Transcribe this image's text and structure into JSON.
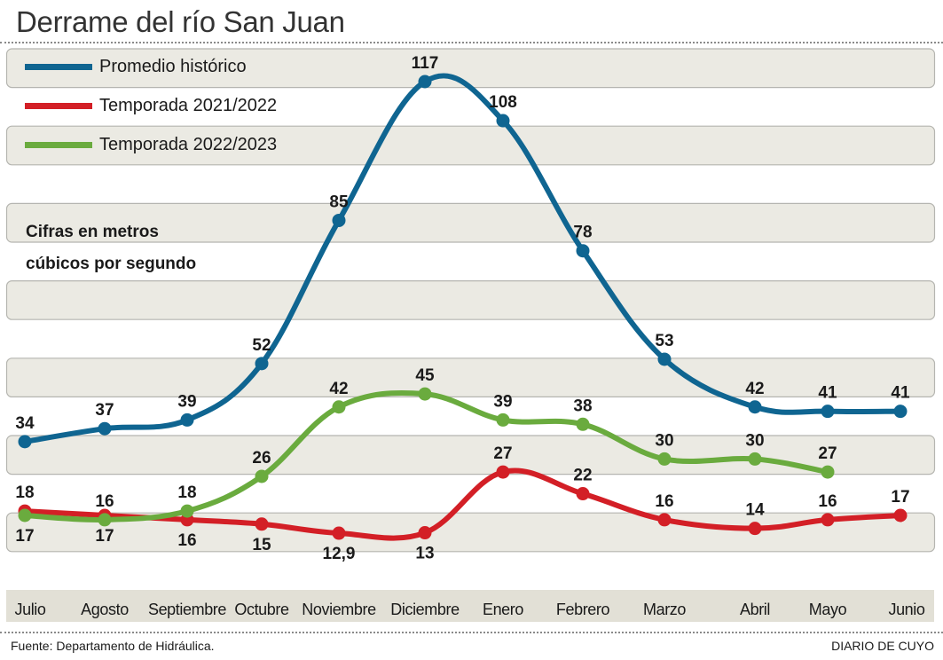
{
  "title": "Derrame del río San Juan",
  "note_line1": "Cifras en metros",
  "note_line2": "cúbicos por segundo",
  "source": "Fuente: Departamento de Hidráulica.",
  "brand": "DIARIO DE CUYO",
  "colors": {
    "band": "#ebeae3",
    "band_border": "#b5b5b0",
    "month_bar": "#e2e0d6"
  },
  "chart_data": {
    "type": "line",
    "title": "Derrame del río San Juan",
    "subtitle": "Cifras en metros cúbicos por segundo",
    "xlabel": "",
    "ylabel": "m³/s",
    "grid": false,
    "legend_position": "top-left",
    "categories": [
      "Julio",
      "Agosto",
      "Septiembre",
      "Octubre",
      "Noviembre",
      "Diciembre",
      "Enero",
      "Febrero",
      "Marzo",
      "Abril",
      "Mayo",
      "Junio"
    ],
    "series": [
      {
        "name": "Promedio histórico",
        "color": "#0f6591",
        "values": [
          34,
          37,
          39,
          52,
          85,
          117,
          108,
          78,
          53,
          42,
          41,
          41
        ],
        "labels": [
          "34",
          "37",
          "39",
          "52",
          "85",
          "117",
          "108",
          "78",
          "53",
          "42",
          "41",
          "41"
        ]
      },
      {
        "name": "Temporada 2021/2022",
        "color": "#d31f26",
        "values": [
          18,
          17,
          16,
          15,
          12.9,
          13,
          27,
          22,
          16,
          14,
          16,
          17
        ],
        "labels": [
          "18",
          "17",
          "16",
          "15",
          "12,9",
          "13",
          "27",
          "22",
          "16",
          "14",
          "16",
          "17"
        ]
      },
      {
        "name": "Temporada 2022/2023",
        "color": "#6aab3e",
        "values": [
          17,
          16,
          18,
          26,
          42,
          45,
          39,
          38,
          30,
          30,
          27,
          null
        ],
        "labels": [
          "17",
          "16",
          "18",
          "26",
          "42",
          "45",
          "39",
          "38",
          "30",
          "30",
          "27",
          null
        ]
      }
    ]
  }
}
